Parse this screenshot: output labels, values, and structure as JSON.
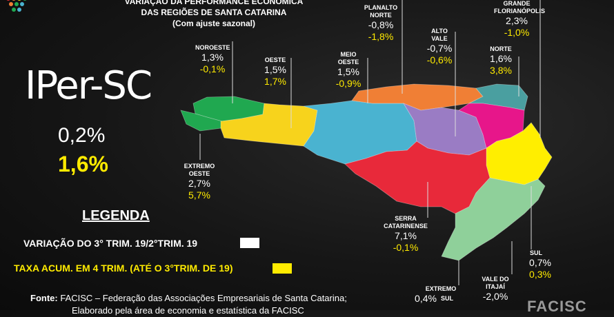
{
  "header": {
    "line1": "VARIAÇÃO DA PERFORMANCE ECONÔMICA",
    "line2": "DAS REGIÕES DE SANTA CATARINA",
    "line3": "(Com ajuste sazonal)"
  },
  "brand": {
    "title": "IPer-SC",
    "variation": "0,2%",
    "accumulated": "1,6%"
  },
  "legend": {
    "title": "LEGENDA",
    "white_label": "VARIAÇÃO DO 3° TRIM. 19/2°TRIM. 19",
    "yellow_label": "TAXA ACUM. EM 4 TRIM. (ATÉ O 3°TRIM. DE 19)",
    "white_color": "#ffffff",
    "yellow_color": "#ffeb00"
  },
  "source": {
    "prefix": "Fonte:",
    "text": "FACISC – Federação das Associações Empresariais de Santa Catarina;",
    "line2": "Elaborado pela área de economia e estatística da FACISC"
  },
  "logo_text": "FACISC",
  "regions": [
    {
      "name1": "NOROESTE",
      "name2": "",
      "variation": "1,3%",
      "accumulated": "-0,1%",
      "color": "#20a850"
    },
    {
      "name1": "OESTE",
      "name2": "",
      "variation": "1,5%",
      "accumulated": "1,7%",
      "color": "#f7d31c"
    },
    {
      "name1": "MEIO",
      "name2": "OESTE",
      "variation": "1,5%",
      "accumulated": "-0,9%",
      "color": "#4ab3d0"
    },
    {
      "name1": "PLANALTO",
      "name2": "NORTE",
      "variation": "-0,8%",
      "accumulated": "-1,8%",
      "color": "#f07f35"
    },
    {
      "name1": "ALTO",
      "name2": "VALE",
      "variation": "-0,7%",
      "accumulated": "-0,6%",
      "color": "#9a7cc4"
    },
    {
      "name1": "GRANDE",
      "name2": "FLORIANÓPOLIS",
      "variation": "2,3%",
      "accumulated": "-1,0%",
      "color": "#ffee00"
    },
    {
      "name1": "NORTE",
      "name2": "",
      "variation": "1,6%",
      "accumulated": "3,8%",
      "color": "#4a9fa0"
    },
    {
      "name1": "EXTREMO",
      "name2": "OESTE",
      "variation": "2,7%",
      "accumulated": "5,7%",
      "color": "#20a850"
    },
    {
      "name1": "SERRA",
      "name2": "CATARINENSE",
      "variation": "7,1%",
      "accumulated": "-0,1%",
      "color": "#e8293a"
    },
    {
      "name1": "SUL",
      "name2": "",
      "variation": "0,7%",
      "accumulated": "0,3%",
      "color": "#8fd09a"
    },
    {
      "name1": "VALE DO",
      "name2": "ITAJAÍ",
      "variation": "-2,0%",
      "accumulated": "",
      "color": "#e7168a"
    },
    {
      "name1": "EXTREMO",
      "name2": "SUL",
      "variation": "0,4%",
      "accumulated": "",
      "color": "#8fd09a"
    }
  ]
}
